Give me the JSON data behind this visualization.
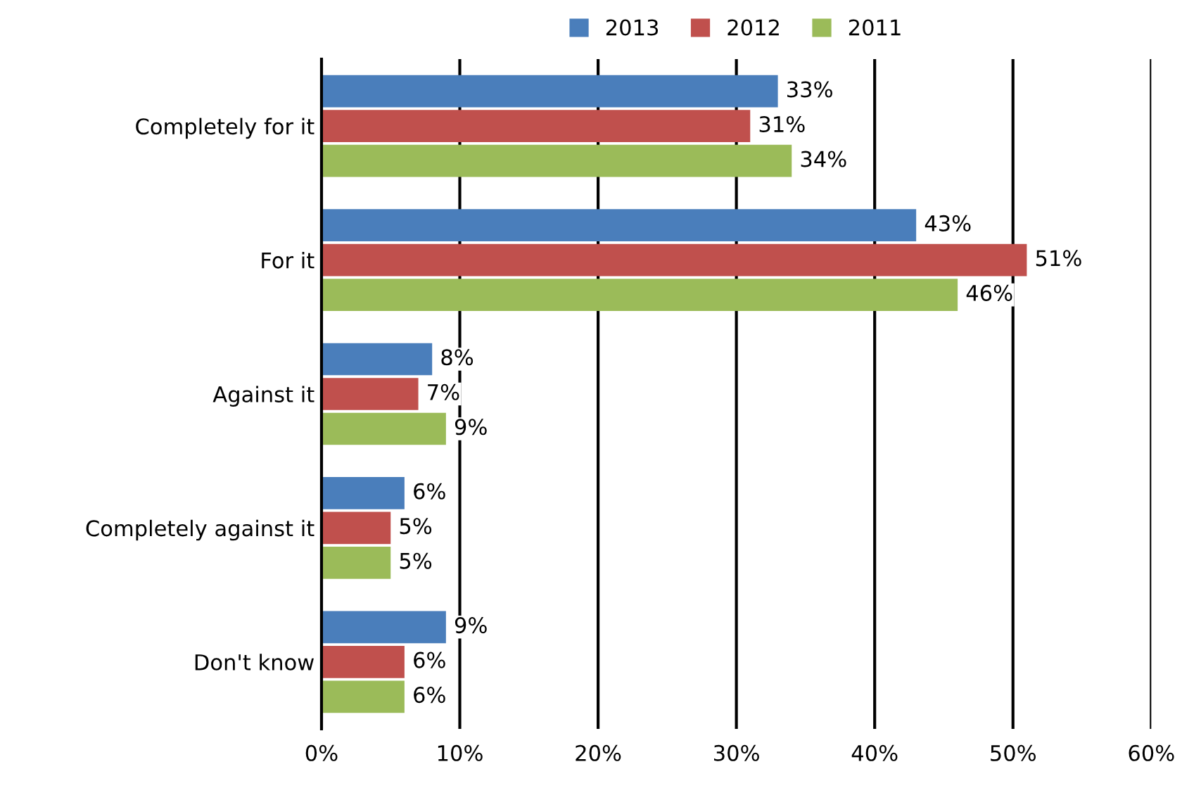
{
  "chart_data": {
    "type": "bar",
    "orientation": "horizontal",
    "categories": [
      "Completely for it",
      "For it",
      "Against it",
      "Completely against it",
      "Don't know"
    ],
    "series": [
      {
        "name": "2013",
        "color": "#4a7ebb",
        "values": [
          33,
          43,
          8,
          6,
          9
        ],
        "value_labels": [
          "33%",
          "43%",
          "8%",
          "6%",
          "9%"
        ]
      },
      {
        "name": "2012",
        "color": "#c0504d",
        "values": [
          31,
          51,
          7,
          5,
          6
        ],
        "value_labels": [
          "31%",
          "51%",
          "7%",
          "5%",
          "6%"
        ]
      },
      {
        "name": "2011",
        "color": "#9bbb59",
        "values": [
          34,
          46,
          9,
          5,
          6
        ],
        "value_labels": [
          "34%",
          "46%",
          "9%",
          "5%",
          "6%"
        ]
      }
    ],
    "xlim": [
      0,
      60
    ],
    "xticks": [
      {
        "value": 0,
        "label": "0%"
      },
      {
        "value": 10,
        "label": "10%"
      },
      {
        "value": 20,
        "label": "20%"
      },
      {
        "value": 30,
        "label": "30%"
      },
      {
        "value": 40,
        "label": "40%"
      },
      {
        "value": 50,
        "label": "50%"
      },
      {
        "value": 60,
        "label": "60%"
      }
    ],
    "grid": "x",
    "legend": "top"
  }
}
